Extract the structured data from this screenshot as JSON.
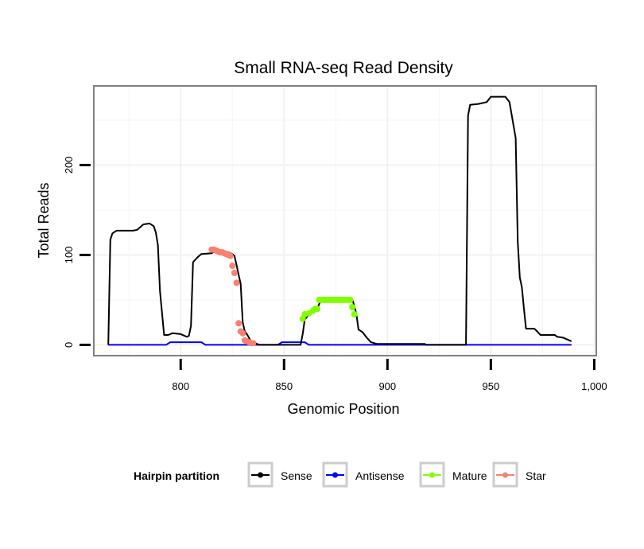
{
  "chart_data": {
    "type": "line",
    "title": "Small RNA-seq Read Density",
    "xlabel": "Genomic Position",
    "ylabel": "Total Reads",
    "xlim": [
      758,
      1001
    ],
    "ylim": [
      -12,
      288
    ],
    "x_ticks": [
      800,
      850,
      900,
      950,
      1000
    ],
    "x_tick_labels": [
      "800",
      "850",
      "900",
      "950",
      "1,000"
    ],
    "y_ticks": [
      0,
      100,
      200
    ],
    "y_tick_labels": [
      "0",
      "100",
      "200"
    ],
    "grid": true,
    "legend": {
      "title": "Hairpin partition",
      "position": "bottom",
      "entries": [
        "Sense",
        "Antisense",
        "Mature",
        "Star"
      ]
    },
    "series": [
      {
        "name": "Sense",
        "color": "#000000",
        "style": "line",
        "points": [
          [
            765,
            0
          ],
          [
            766,
            117
          ],
          [
            767,
            124
          ],
          [
            769,
            127
          ],
          [
            777,
            127
          ],
          [
            779,
            128
          ],
          [
            780,
            130
          ],
          [
            782,
            134
          ],
          [
            785,
            135
          ],
          [
            787,
            132
          ],
          [
            788,
            125
          ],
          [
            789,
            111
          ],
          [
            790,
            60
          ],
          [
            792,
            11
          ],
          [
            794,
            11
          ],
          [
            796,
            13
          ],
          [
            800,
            12
          ],
          [
            803,
            9
          ],
          [
            804,
            10
          ],
          [
            805,
            21
          ],
          [
            806,
            92
          ],
          [
            808,
            97
          ],
          [
            810,
            101
          ],
          [
            815,
            102
          ],
          [
            818,
            106
          ],
          [
            820,
            104
          ],
          [
            823,
            103
          ],
          [
            825,
            101
          ],
          [
            826,
            99
          ],
          [
            827,
            89
          ],
          [
            828,
            78
          ],
          [
            829,
            68
          ],
          [
            830,
            25
          ],
          [
            831,
            15
          ],
          [
            832,
            12
          ],
          [
            834,
            4
          ],
          [
            836,
            2
          ],
          [
            838,
            0
          ],
          [
            858,
            0
          ],
          [
            859,
            12
          ],
          [
            860,
            28
          ],
          [
            862,
            34
          ],
          [
            864,
            37
          ],
          [
            866,
            40
          ],
          [
            868,
            51
          ],
          [
            883,
            51
          ],
          [
            884,
            43
          ],
          [
            885,
            34
          ],
          [
            886,
            17
          ],
          [
            888,
            14
          ],
          [
            890,
            8
          ],
          [
            892,
            3
          ],
          [
            895,
            1
          ],
          [
            918,
            1
          ],
          [
            919,
            0
          ],
          [
            938,
            0
          ],
          [
            939,
            255
          ],
          [
            940,
            267
          ],
          [
            944,
            268
          ],
          [
            948,
            270
          ],
          [
            950,
            276
          ],
          [
            957,
            276
          ],
          [
            959,
            270
          ],
          [
            962,
            230
          ],
          [
            963,
            115
          ],
          [
            964,
            75
          ],
          [
            965,
            64
          ],
          [
            966,
            40
          ],
          [
            967,
            18
          ],
          [
            971,
            18
          ],
          [
            972,
            16
          ],
          [
            974,
            11
          ],
          [
            981,
            11
          ],
          [
            982,
            9
          ],
          [
            985,
            8
          ],
          [
            988,
            5
          ],
          [
            989,
            4
          ]
        ]
      },
      {
        "name": "Antisense",
        "color": "#0000ff",
        "style": "line",
        "points": [
          [
            765,
            0
          ],
          [
            793,
            0
          ],
          [
            795,
            3
          ],
          [
            810,
            3
          ],
          [
            812,
            0
          ],
          [
            847,
            0
          ],
          [
            849,
            3
          ],
          [
            860,
            3
          ],
          [
            862,
            0
          ],
          [
            989,
            0
          ]
        ]
      },
      {
        "name": "Mature",
        "color": "#7fff00",
        "style": "points",
        "points": [
          [
            859,
            29
          ],
          [
            860,
            34
          ],
          [
            862,
            35
          ],
          [
            864,
            38
          ],
          [
            865,
            40
          ],
          [
            866,
            40
          ],
          [
            867,
            50
          ],
          [
            868,
            50
          ],
          [
            869,
            50
          ],
          [
            870,
            50
          ],
          [
            871,
            50
          ],
          [
            872,
            50
          ],
          [
            873,
            50
          ],
          [
            874,
            50
          ],
          [
            875,
            50
          ],
          [
            876,
            50
          ],
          [
            877,
            50
          ],
          [
            878,
            50
          ],
          [
            879,
            50
          ],
          [
            880,
            50
          ],
          [
            881,
            50
          ],
          [
            882,
            50
          ],
          [
            883,
            42
          ],
          [
            884,
            34
          ]
        ]
      },
      {
        "name": "Star",
        "color": "#fa8072",
        "style": "points",
        "points": [
          [
            815,
            106
          ],
          [
            816,
            106
          ],
          [
            817,
            105
          ],
          [
            818,
            104
          ],
          [
            819,
            103
          ],
          [
            820,
            103
          ],
          [
            821,
            102
          ],
          [
            822,
            101
          ],
          [
            823,
            100
          ],
          [
            824,
            99
          ],
          [
            825,
            88
          ],
          [
            826,
            80
          ],
          [
            827,
            69
          ],
          [
            828,
            24
          ],
          [
            829,
            15
          ],
          [
            830,
            13
          ],
          [
            831,
            5
          ],
          [
            832,
            4
          ],
          [
            833,
            3
          ],
          [
            834,
            2
          ],
          [
            835,
            2
          ]
        ]
      }
    ]
  }
}
